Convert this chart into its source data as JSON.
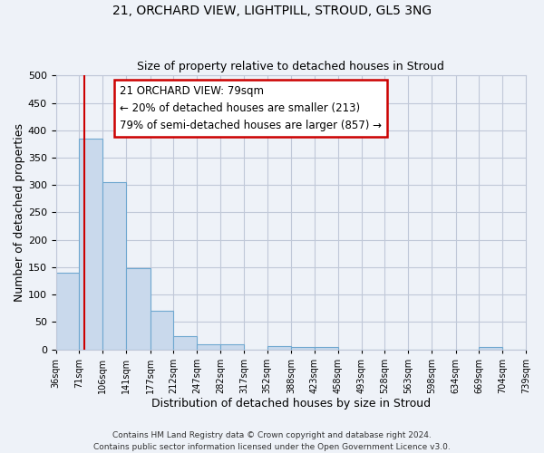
{
  "title": "21, ORCHARD VIEW, LIGHTPILL, STROUD, GL5 3NG",
  "subtitle": "Size of property relative to detached houses in Stroud",
  "xlabel": "Distribution of detached houses by size in Stroud",
  "ylabel": "Number of detached properties",
  "bin_edges": [
    36,
    71,
    106,
    141,
    177,
    212,
    247,
    282,
    317,
    352,
    388,
    423,
    458,
    493,
    528,
    563,
    598,
    634,
    669,
    704,
    739
  ],
  "bar_heights": [
    140,
    385,
    305,
    149,
    70,
    24,
    9,
    9,
    0,
    6,
    4,
    5,
    0,
    0,
    0,
    0,
    0,
    0,
    5,
    0
  ],
  "bar_color": "#c9d9ec",
  "bar_edge_color": "#6fa8d0",
  "red_line_x": 79,
  "annotation_title": "21 ORCHARD VIEW: 79sqm",
  "annotation_line1": "← 20% of detached houses are smaller (213)",
  "annotation_line2": "79% of semi-detached houses are larger (857) →",
  "annotation_box_color": "#ffffff",
  "annotation_box_edge_color": "#cc0000",
  "red_line_color": "#cc0000",
  "ylim": [
    0,
    500
  ],
  "yticks": [
    0,
    50,
    100,
    150,
    200,
    250,
    300,
    350,
    400,
    450,
    500
  ],
  "grid_color": "#c0c8d8",
  "bg_color": "#eef2f8",
  "footer_line1": "Contains HM Land Registry data © Crown copyright and database right 2024.",
  "footer_line2": "Contains public sector information licensed under the Open Government Licence v3.0."
}
